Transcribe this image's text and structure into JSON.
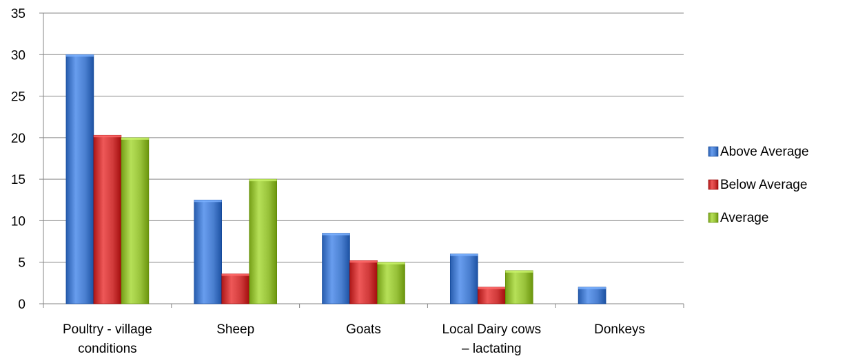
{
  "chart_data": {
    "type": "bar",
    "categories": [
      [
        "Poultry - village",
        "conditions"
      ],
      [
        "Sheep"
      ],
      [
        "Goats"
      ],
      [
        "Local Dairy cows",
        "– lactating"
      ],
      [
        "Donkeys"
      ]
    ],
    "series": [
      {
        "name": "Above Average",
        "color": "#4a7fd0",
        "values": [
          30,
          12.5,
          8.5,
          6,
          2
        ]
      },
      {
        "name": "Below Average",
        "color": "#d03a3a",
        "values": [
          20.3,
          3.6,
          5.2,
          2,
          0
        ]
      },
      {
        "name": "Average",
        "color": "#98c23a",
        "values": [
          20,
          15,
          5,
          4,
          0
        ]
      }
    ],
    "ylim": [
      0,
      35
    ],
    "yticks": [
      0,
      5,
      10,
      15,
      20,
      25,
      30,
      35
    ],
    "grid": true,
    "legend_position": "right"
  }
}
